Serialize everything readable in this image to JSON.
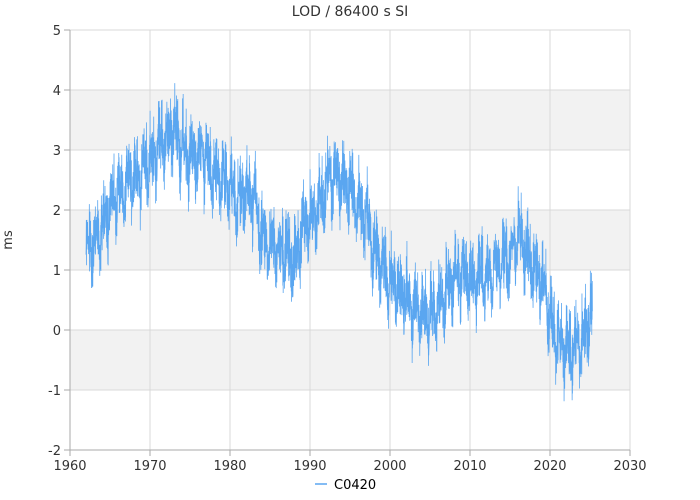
{
  "chart_data": {
    "type": "line",
    "title": "LOD / 86400 s SI",
    "xlabel": "",
    "ylabel": "ms",
    "xlim": [
      1960,
      2030
    ],
    "ylim": [
      -2,
      5
    ],
    "x_ticks": [
      "1960",
      "1970",
      "1980",
      "1990",
      "2000",
      "2010",
      "2020",
      "2030"
    ],
    "y_ticks": [
      "-2",
      "-1",
      "0",
      "1",
      "2",
      "3",
      "4",
      "5"
    ],
    "grid": true,
    "alternating_bands": true,
    "legend": {
      "position": "bottom-center"
    },
    "colors": {
      "series": "#5aa6f0",
      "band": "#f2f2f2",
      "grid": "#d9d9d9",
      "axis": "#aaaaaa"
    },
    "x_range_of_data": [
      1962.0,
      2025.3
    ],
    "series": [
      {
        "name": "C0420",
        "trend": [
          [
            1962.0,
            1.3
          ],
          [
            1963.0,
            1.4
          ],
          [
            1964.0,
            1.7
          ],
          [
            1965.0,
            2.0
          ],
          [
            1966.0,
            2.3
          ],
          [
            1967.0,
            2.4
          ],
          [
            1968.0,
            2.5
          ],
          [
            1969.0,
            2.6
          ],
          [
            1970.0,
            2.8
          ],
          [
            1971.0,
            3.0
          ],
          [
            1972.0,
            3.2
          ],
          [
            1973.0,
            3.3
          ],
          [
            1974.0,
            3.0
          ],
          [
            1975.0,
            2.9
          ],
          [
            1976.0,
            2.9
          ],
          [
            1977.0,
            2.9
          ],
          [
            1978.0,
            2.6
          ],
          [
            1979.0,
            2.5
          ],
          [
            1980.0,
            2.4
          ],
          [
            1981.0,
            2.1
          ],
          [
            1982.0,
            2.3
          ],
          [
            1983.0,
            2.2
          ],
          [
            1984.0,
            1.5
          ],
          [
            1985.0,
            1.4
          ],
          [
            1986.0,
            1.3
          ],
          [
            1987.0,
            1.3
          ],
          [
            1988.0,
            1.1
          ],
          [
            1989.0,
            1.6
          ],
          [
            1990.0,
            1.9
          ],
          [
            1991.0,
            2.0
          ],
          [
            1992.0,
            2.4
          ],
          [
            1993.0,
            2.6
          ],
          [
            1994.0,
            2.4
          ],
          [
            1995.0,
            2.3
          ],
          [
            1996.0,
            2.0
          ],
          [
            1997.0,
            1.9
          ],
          [
            1998.0,
            1.3
          ],
          [
            1999.0,
            1.0
          ],
          [
            2000.0,
            0.8
          ],
          [
            2001.0,
            0.7
          ],
          [
            2002.0,
            0.6
          ],
          [
            2003.0,
            0.3
          ],
          [
            2004.0,
            0.3
          ],
          [
            2005.0,
            0.2
          ],
          [
            2006.0,
            0.4
          ],
          [
            2007.0,
            0.6
          ],
          [
            2008.0,
            0.8
          ],
          [
            2009.0,
            0.9
          ],
          [
            2010.0,
            0.8
          ],
          [
            2011.0,
            0.9
          ],
          [
            2012.0,
            0.9
          ],
          [
            2013.0,
            1.0
          ],
          [
            2014.0,
            1.1
          ],
          [
            2015.0,
            1.2
          ],
          [
            2016.0,
            1.6
          ],
          [
            2017.0,
            1.3
          ],
          [
            2018.0,
            1.0
          ],
          [
            2019.0,
            0.8
          ],
          [
            2020.0,
            0.2
          ],
          [
            2021.0,
            -0.2
          ],
          [
            2022.0,
            -0.3
          ],
          [
            2023.0,
            -0.3
          ],
          [
            2024.0,
            -0.2
          ],
          [
            2025.0,
            0.2
          ],
          [
            2025.3,
            0.3
          ]
        ],
        "variability_amplitude": 0.9
      }
    ]
  }
}
